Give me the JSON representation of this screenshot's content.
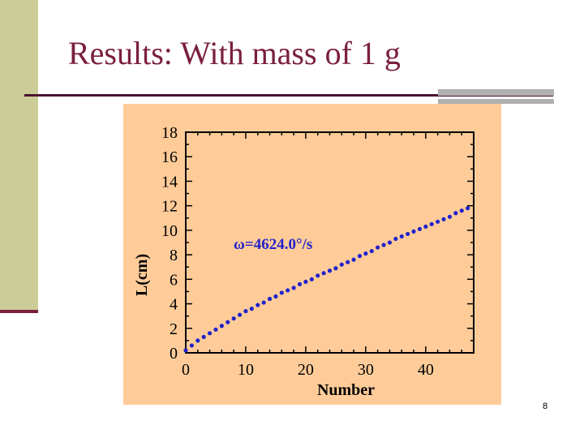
{
  "slide": {
    "title": "Results: With mass of 1 g",
    "page_number": "8",
    "colors": {
      "accent": "#7a1f3d",
      "sidebar": "#cccc99",
      "chart_bg": "#ffcc99",
      "series": "#2222cc"
    }
  },
  "chart_data": {
    "type": "scatter",
    "title": "",
    "xlabel": "Number",
    "ylabel": "L(cm)",
    "xlim": [
      0,
      48
    ],
    "ylim": [
      0,
      18
    ],
    "x_ticks": [
      "0",
      "10",
      "20",
      "30",
      "40"
    ],
    "y_ticks": [
      "0",
      "2",
      "4",
      "6",
      "8",
      "10",
      "12",
      "14",
      "16",
      "18"
    ],
    "annotation": "ω=4624.0°/s",
    "grid": false,
    "series": [
      {
        "color": "#2222cc",
        "x": [
          0,
          1,
          2,
          3,
          4,
          5,
          6,
          7,
          8,
          9,
          10,
          11,
          12,
          13,
          14,
          15,
          16,
          17,
          18,
          19,
          20,
          21,
          22,
          23,
          24,
          25,
          26,
          27,
          28,
          29,
          30,
          31,
          32,
          33,
          34,
          35,
          36,
          37,
          38,
          39,
          40,
          41,
          42,
          43,
          44,
          45,
          46,
          47
        ],
        "y": [
          0.2,
          0.6,
          1.0,
          1.3,
          1.6,
          1.9,
          2.2,
          2.5,
          2.8,
          3.1,
          3.4,
          3.6,
          3.9,
          4.1,
          4.4,
          4.6,
          4.9,
          5.1,
          5.3,
          5.6,
          5.8,
          6.0,
          6.3,
          6.5,
          6.7,
          6.9,
          7.2,
          7.4,
          7.6,
          7.9,
          8.1,
          8.3,
          8.6,
          8.8,
          9.0,
          9.3,
          9.5,
          9.7,
          9.9,
          10.1,
          10.3,
          10.5,
          10.7,
          10.9,
          11.1,
          11.4,
          11.6,
          11.8
        ]
      }
    ]
  }
}
